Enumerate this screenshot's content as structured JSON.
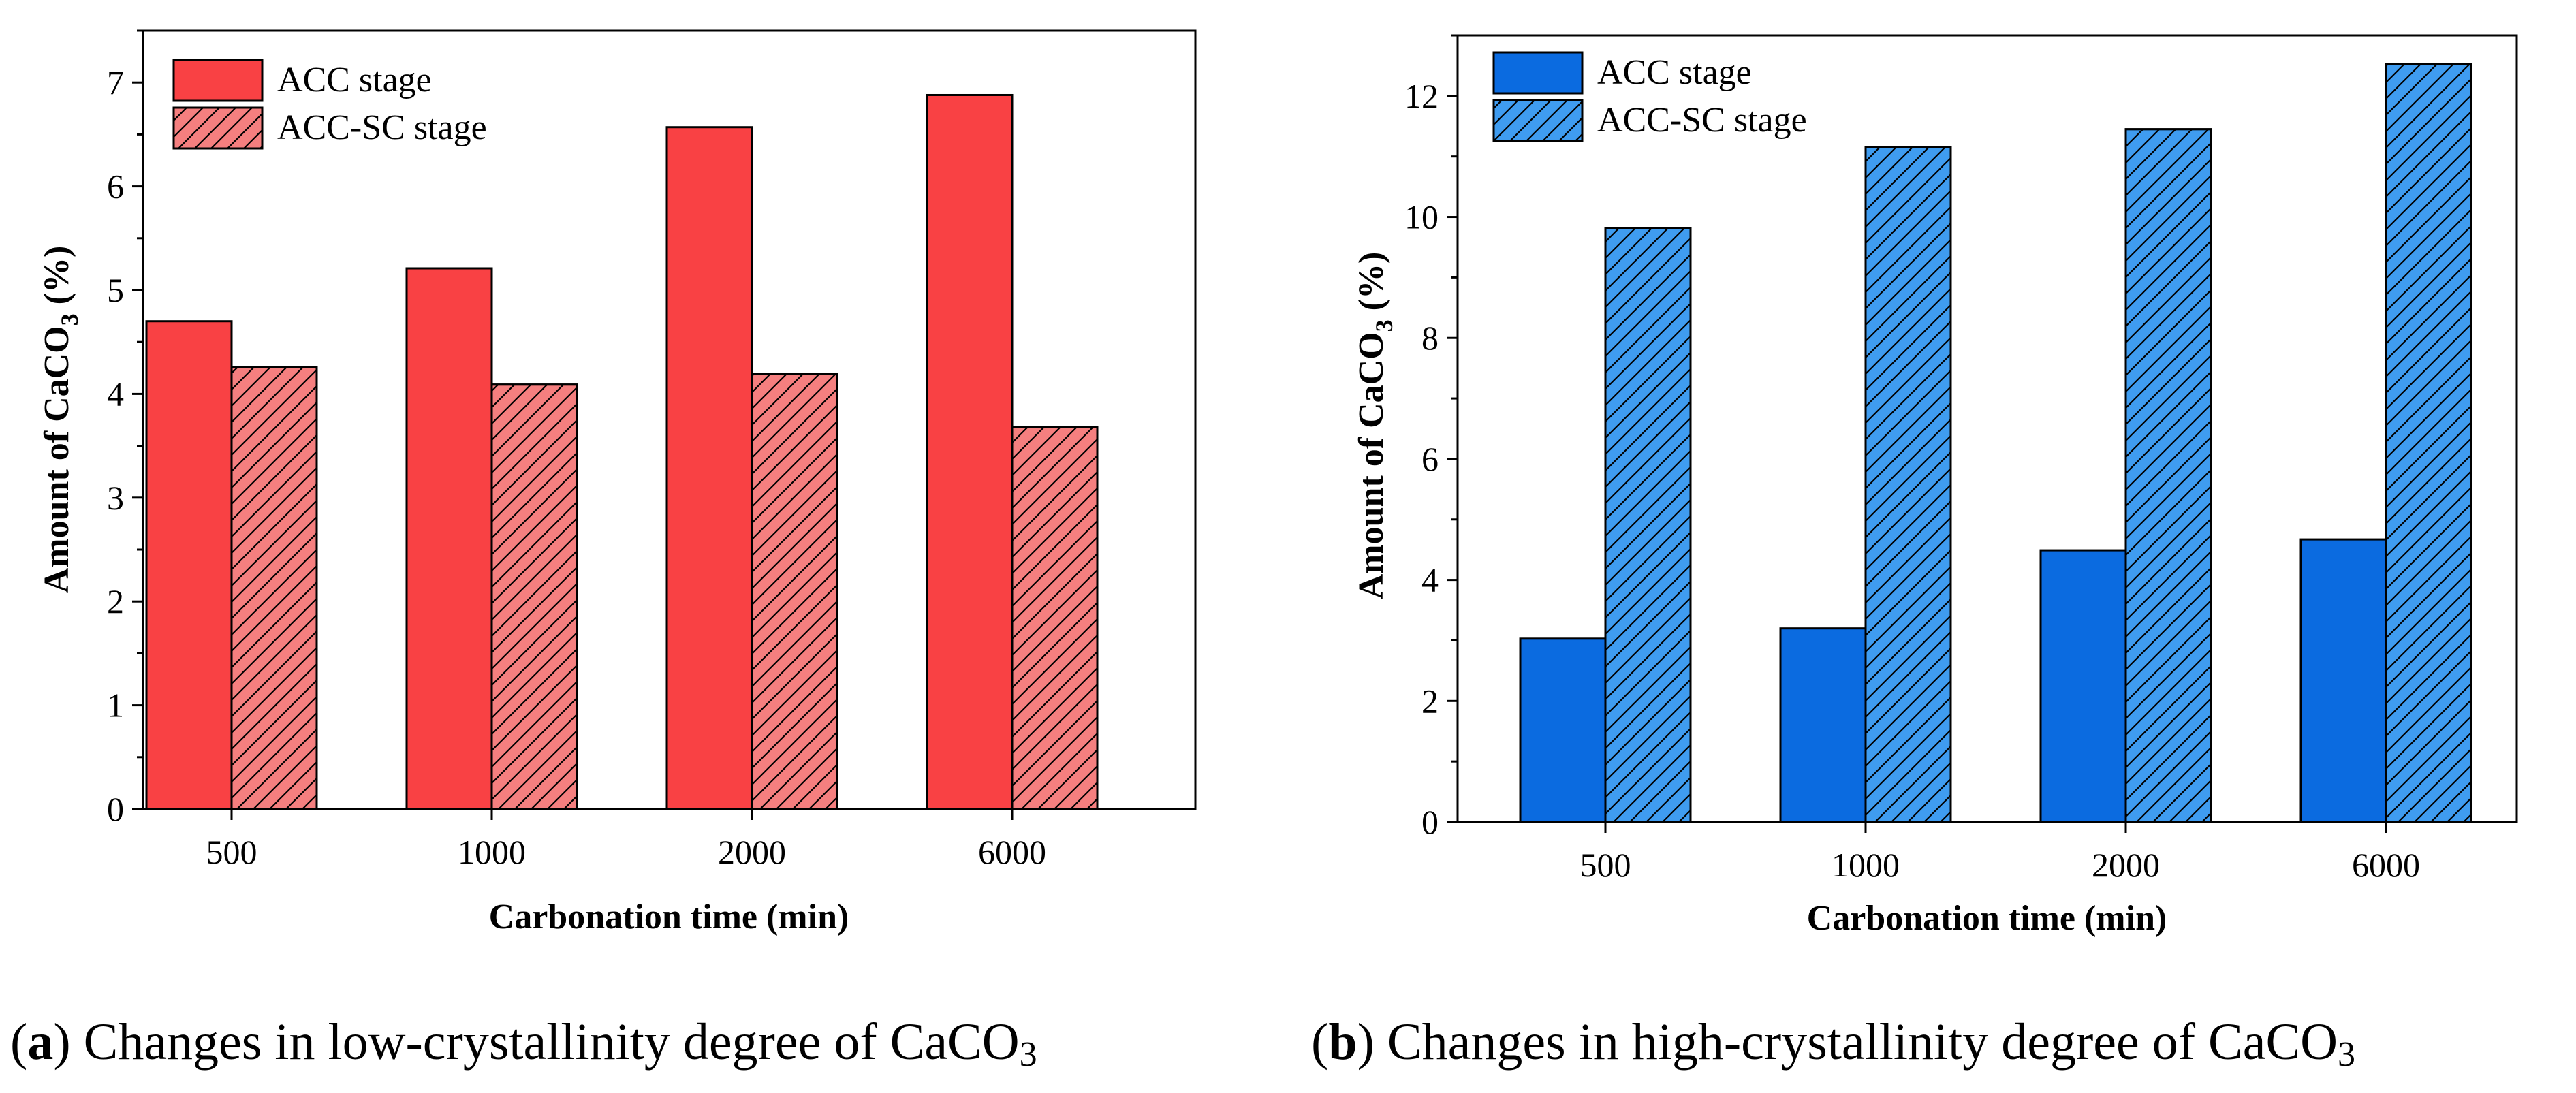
{
  "colors": {
    "acc_a": "#f94144",
    "acc_sc_a": "#f57f7f",
    "acc_b": "#0b6be0",
    "acc_sc_b": "#3f9cf0",
    "stroke": "#000000"
  },
  "chart_data": [
    {
      "id": "a",
      "type": "bar",
      "categories": [
        "500",
        "1000",
        "2000",
        "6000"
      ],
      "series": [
        {
          "name": "ACC stage",
          "values": [
            4.7,
            5.21,
            6.57,
            6.88
          ],
          "pattern": "solid"
        },
        {
          "name": "ACC-SC stage",
          "values": [
            4.26,
            4.09,
            4.19,
            3.68
          ],
          "pattern": "hatched"
        }
      ],
      "xlabel": "Carbonation time (min)",
      "ylabel": {
        "prefix": "Amount of CaCO",
        "sub": "3",
        "suffix": " (%)"
      },
      "ylim": [
        0,
        7.5
      ],
      "yticks": [
        0,
        1,
        2,
        3,
        4,
        5,
        6,
        7
      ],
      "legend": "top-left",
      "caption": {
        "open": "(",
        "letter": "a",
        "close": ")",
        "text": " Changes in low-crystallinity degree of CaCO",
        "sub": "3"
      }
    },
    {
      "id": "b",
      "type": "bar",
      "categories": [
        "500",
        "1000",
        "2000",
        "6000"
      ],
      "series": [
        {
          "name": "ACC stage",
          "values": [
            3.03,
            3.2,
            4.49,
            4.67
          ],
          "pattern": "solid"
        },
        {
          "name": "ACC-SC stage",
          "values": [
            9.82,
            11.15,
            11.45,
            12.53
          ],
          "pattern": "hatched"
        }
      ],
      "xlabel": "Carbonation time (min)",
      "ylabel": {
        "prefix": "Amount of CaCO",
        "sub": "3",
        "suffix": " (%)"
      },
      "ylim": [
        0,
        13
      ],
      "yticks": [
        0,
        2,
        4,
        6,
        8,
        10,
        12
      ],
      "legend": "top-left",
      "caption": {
        "open": "(",
        "letter": "b",
        "close": ")",
        "text": " Changes in high-crystallinity degree of CaCO",
        "sub": "3"
      }
    }
  ]
}
